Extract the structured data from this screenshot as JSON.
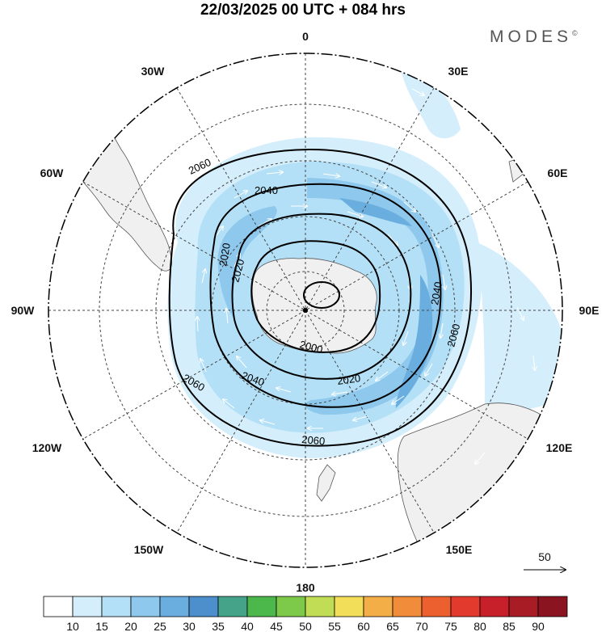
{
  "header": {
    "title": "22/03/2025  00 UTC  + 084 hrs",
    "brand": "MODES",
    "brand_mark": "©"
  },
  "map": {
    "projection": "south polar stereographic",
    "longitude_labels": {
      "top": "0",
      "bottom": "180",
      "left": "90W",
      "right": "90E",
      "upper_left_1": "30W",
      "upper_left_2": "60W",
      "lower_left_1": "120W",
      "lower_left_2": "150W",
      "upper_right_1": "30E",
      "upper_right_2": "60E",
      "lower_right_1": "120E",
      "lower_right_2": "150E"
    },
    "contour_labels": [
      "2060",
      "2040",
      "2020",
      "2020",
      "2040",
      "2060",
      "2000",
      "2020",
      "2040",
      "2060",
      "2060"
    ],
    "contour_values": [
      2000,
      2020,
      2040,
      2060
    ],
    "wind_reference": {
      "label": "50"
    },
    "colors": {
      "land": "#f0f0f0",
      "coast": "#555555",
      "contour": "#000000",
      "wind_arrow": "#ffffff"
    }
  },
  "colorbar": {
    "ticks": [
      "10",
      "15",
      "20",
      "25",
      "30",
      "35",
      "40",
      "45",
      "50",
      "55",
      "60",
      "65",
      "70",
      "75",
      "80",
      "85",
      "90"
    ],
    "colors": [
      "#ffffff",
      "#d4eefb",
      "#b3e0f6",
      "#8ec8ed",
      "#6aaee0",
      "#4d8fcc",
      "#45a38a",
      "#4cb84c",
      "#7dc94a",
      "#c1dd55",
      "#f3de5a",
      "#f3ae48",
      "#f08c3a",
      "#ec6030",
      "#e23a2c",
      "#c8202a",
      "#a81c26",
      "#8a1420"
    ]
  }
}
